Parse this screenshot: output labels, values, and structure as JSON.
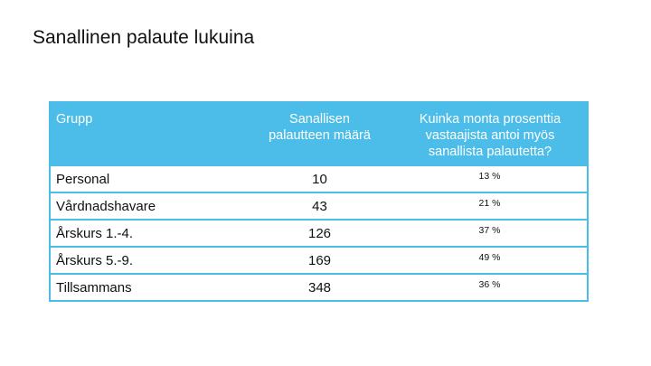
{
  "slide": {
    "title": "Sanallinen palaute lukuina"
  },
  "table": {
    "headers": {
      "group": "Grupp",
      "count": "Sanallisen\npalautteen määrä",
      "percent": "Kuinka monta prosenttia\nvastaajista antoi myös\nsanallista palautetta?"
    },
    "rows": [
      {
        "group": "Personal",
        "count": "10",
        "percent": "13 %"
      },
      {
        "group": "Vårdnadshavare",
        "count": "43",
        "percent": "21 %"
      },
      {
        "group": "Årskurs 1.-4.",
        "count": "126",
        "percent": "37 %"
      },
      {
        "group": "Årskurs 5.-9.",
        "count": "169",
        "percent": "49 %"
      },
      {
        "group": "Tillsammans",
        "count": "348",
        "percent": "36 %"
      }
    ]
  },
  "colors": {
    "header_background": "#4bbde8",
    "header_text": "#ffffff",
    "border": "#4bbde8",
    "body_text": "#111111"
  }
}
